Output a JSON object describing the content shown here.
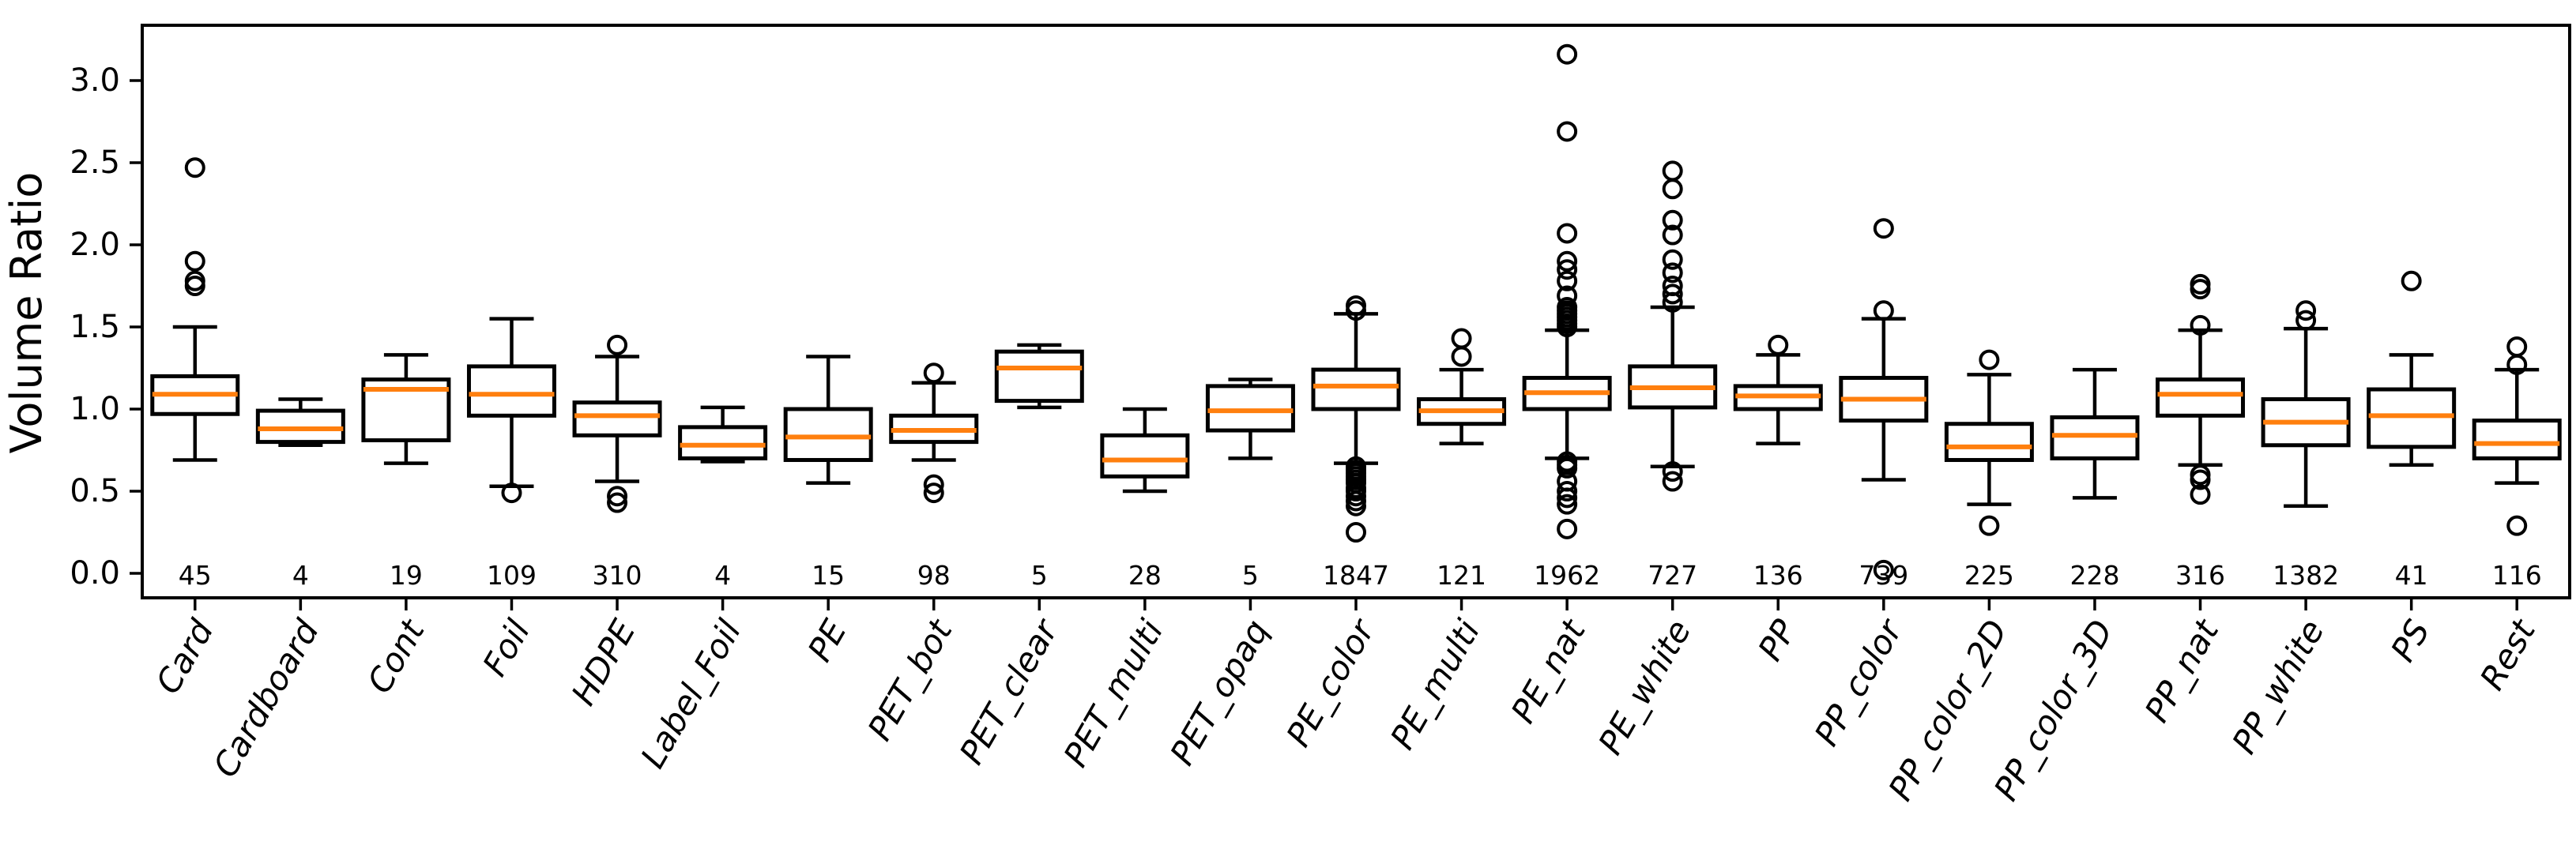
{
  "figure": {
    "background": "#ffffff",
    "box_line_color": "#000000",
    "median_color": "#ff7f0e",
    "text_color": "#000000"
  },
  "chart_data": {
    "type": "boxplot",
    "title": "",
    "xlabel": "",
    "ylabel": "Volume Ratio",
    "grid": false,
    "legend": false,
    "ylim": [
      -0.15,
      3.34
    ],
    "yticks": [
      0.0,
      0.5,
      1.0,
      1.5,
      2.0,
      2.5,
      3.0
    ],
    "ytick_labels": [
      "0.0",
      "0.5",
      "1.0",
      "1.5",
      "2.0",
      "2.5",
      "3.0"
    ],
    "categories": [
      "Card",
      "Cardboard",
      "Cont",
      "Foil",
      "HDPE",
      "Label_Foil",
      "PE",
      "PET_bot",
      "PET_clear",
      "PET_multi",
      "PET_opaq",
      "PE_color",
      "PE_multi",
      "PE_nat",
      "PE_white",
      "PP",
      "PP_color",
      "PP_color_2D",
      "PP_color_3D",
      "PP_nat",
      "PP_white",
      "PS",
      "Rest"
    ],
    "counts": [
      45,
      4,
      19,
      109,
      310,
      4,
      15,
      98,
      5,
      28,
      5,
      1847,
      121,
      1962,
      727,
      136,
      739,
      225,
      228,
      316,
      1382,
      41,
      116
    ],
    "series": [
      {
        "label": "Card",
        "count": 45,
        "whisker_low": 0.69,
        "q1": 0.97,
        "median": 1.09,
        "q3": 1.2,
        "whisker_high": 1.5,
        "outliers": [
          1.75,
          1.78,
          1.9,
          2.47
        ]
      },
      {
        "label": "Cardboard",
        "count": 4,
        "whisker_low": 0.78,
        "q1": 0.8,
        "median": 0.88,
        "q3": 0.99,
        "whisker_high": 1.06,
        "outliers": []
      },
      {
        "label": "Cont",
        "count": 19,
        "whisker_low": 0.67,
        "q1": 0.81,
        "median": 1.12,
        "q3": 1.18,
        "whisker_high": 1.33,
        "outliers": []
      },
      {
        "label": "Foil",
        "count": 109,
        "whisker_low": 0.53,
        "q1": 0.96,
        "median": 1.09,
        "q3": 1.26,
        "whisker_high": 1.55,
        "outliers": [
          0.49
        ]
      },
      {
        "label": "HDPE",
        "count": 310,
        "whisker_low": 0.56,
        "q1": 0.84,
        "median": 0.96,
        "q3": 1.04,
        "whisker_high": 1.32,
        "outliers": [
          1.39,
          0.47,
          0.43
        ]
      },
      {
        "label": "Label_Foil",
        "count": 4,
        "whisker_low": 0.68,
        "q1": 0.7,
        "median": 0.78,
        "q3": 0.89,
        "whisker_high": 1.01,
        "outliers": []
      },
      {
        "label": "PE",
        "count": 15,
        "whisker_low": 0.55,
        "q1": 0.69,
        "median": 0.83,
        "q3": 1.0,
        "whisker_high": 1.32,
        "outliers": []
      },
      {
        "label": "PET_bot",
        "count": 98,
        "whisker_low": 0.69,
        "q1": 0.8,
        "median": 0.87,
        "q3": 0.96,
        "whisker_high": 1.16,
        "outliers": [
          1.22,
          0.54,
          0.49
        ]
      },
      {
        "label": "PET_clear",
        "count": 5,
        "whisker_low": 1.01,
        "q1": 1.05,
        "median": 1.25,
        "q3": 1.35,
        "whisker_high": 1.39,
        "outliers": []
      },
      {
        "label": "PET_multi",
        "count": 28,
        "whisker_low": 0.5,
        "q1": 0.59,
        "median": 0.69,
        "q3": 0.84,
        "whisker_high": 1.0,
        "outliers": []
      },
      {
        "label": "PET_opaq",
        "count": 5,
        "whisker_low": 0.7,
        "q1": 0.87,
        "median": 0.99,
        "q3": 1.14,
        "whisker_high": 1.18,
        "outliers": []
      },
      {
        "label": "PE_color",
        "count": 1847,
        "whisker_low": 0.67,
        "q1": 1.0,
        "median": 1.14,
        "q3": 1.24,
        "whisker_high": 1.58,
        "outliers": [
          1.63,
          1.6,
          0.65,
          0.63,
          0.61,
          0.59,
          0.57,
          0.55,
          0.52,
          0.5,
          0.47,
          0.44,
          0.41,
          0.25
        ]
      },
      {
        "label": "PE_multi",
        "count": 121,
        "whisker_low": 0.79,
        "q1": 0.91,
        "median": 0.99,
        "q3": 1.06,
        "whisker_high": 1.24,
        "outliers": [
          1.43,
          1.32
        ]
      },
      {
        "label": "PE_nat",
        "count": 1962,
        "whisker_low": 0.7,
        "q1": 1.0,
        "median": 1.1,
        "q3": 1.19,
        "whisker_high": 1.48,
        "outliers": [
          3.16,
          2.69,
          2.07,
          1.9,
          1.85,
          1.78,
          1.69,
          1.62,
          1.6,
          1.58,
          1.56,
          1.54,
          1.52,
          1.5,
          0.68,
          0.66,
          0.64,
          0.56,
          0.5,
          0.46,
          0.42,
          0.27
        ]
      },
      {
        "label": "PE_white",
        "count": 727,
        "whisker_low": 0.65,
        "q1": 1.01,
        "median": 1.13,
        "q3": 1.26,
        "whisker_high": 1.62,
        "outliers": [
          2.45,
          2.34,
          2.15,
          2.06,
          1.91,
          1.83,
          1.75,
          1.7,
          1.65,
          0.62,
          0.56
        ]
      },
      {
        "label": "PP",
        "count": 136,
        "whisker_low": 0.79,
        "q1": 1.0,
        "median": 1.08,
        "q3": 1.14,
        "whisker_high": 1.33,
        "outliers": [
          1.39
        ]
      },
      {
        "label": "PP_color",
        "count": 739,
        "whisker_low": 0.57,
        "q1": 0.93,
        "median": 1.06,
        "q3": 1.19,
        "whisker_high": 1.55,
        "outliers": [
          2.1,
          1.6,
          0.02
        ]
      },
      {
        "label": "PP_color_2D",
        "count": 225,
        "whisker_low": 0.42,
        "q1": 0.69,
        "median": 0.77,
        "q3": 0.91,
        "whisker_high": 1.21,
        "outliers": [
          1.3,
          0.29
        ]
      },
      {
        "label": "PP_color_3D",
        "count": 228,
        "whisker_low": 0.46,
        "q1": 0.7,
        "median": 0.84,
        "q3": 0.95,
        "whisker_high": 1.24,
        "outliers": []
      },
      {
        "label": "PP_nat",
        "count": 316,
        "whisker_low": 0.66,
        "q1": 0.96,
        "median": 1.09,
        "q3": 1.18,
        "whisker_high": 1.48,
        "outliers": [
          1.76,
          1.73,
          1.51,
          0.6,
          0.57,
          0.48
        ]
      },
      {
        "label": "PP_white",
        "count": 1382,
        "whisker_low": 0.41,
        "q1": 0.78,
        "median": 0.92,
        "q3": 1.06,
        "whisker_high": 1.49,
        "outliers": [
          1.6,
          1.54
        ]
      },
      {
        "label": "PS",
        "count": 41,
        "whisker_low": 0.66,
        "q1": 0.77,
        "median": 0.96,
        "q3": 1.12,
        "whisker_high": 1.33,
        "outliers": [
          1.78
        ]
      },
      {
        "label": "Rest",
        "count": 116,
        "whisker_low": 0.55,
        "q1": 0.7,
        "median": 0.79,
        "q3": 0.93,
        "whisker_high": 1.24,
        "outliers": [
          1.38,
          1.27,
          0.29
        ]
      }
    ]
  }
}
